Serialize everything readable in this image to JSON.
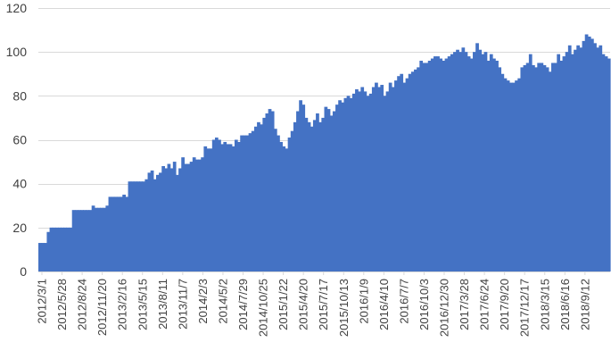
{
  "chart_data": {
    "type": "bar",
    "title": "",
    "xlabel": "",
    "ylabel": "",
    "ylim": [
      0,
      120
    ],
    "yticks": [
      0,
      20,
      40,
      60,
      80,
      100,
      120
    ],
    "grid": "horizontal",
    "legend": "none",
    "bar_color": "#4472C4",
    "x_tick_labels": [
      "2012/3/1",
      "2012/5/28",
      "2012/8/24",
      "2012/11/20",
      "2013/2/16",
      "2013/5/15",
      "2013/8/11",
      "2013/11/7",
      "2014/2/3",
      "2014/5/2",
      "2014/7/29",
      "2014/10/25",
      "2015/1/22",
      "2015/4/20",
      "2015/7/17",
      "2015/10/13",
      "2016/1/9",
      "2016/4/10",
      "2016/7/7",
      "2016/10/3",
      "2016/12/30",
      "2017/3/28",
      "2017/6/24",
      "2017/9/20",
      "2017/12/17",
      "2018/3/15",
      "2018/6/16",
      "2018/9/12"
    ],
    "series": [
      {
        "values": [
          13,
          13,
          13,
          18,
          20,
          20,
          20,
          20,
          20,
          20,
          20,
          20,
          28,
          28,
          28,
          28,
          28,
          28,
          28,
          30,
          29,
          29,
          29,
          29,
          30,
          34,
          34,
          34,
          34,
          34,
          35,
          34,
          41,
          41,
          41,
          41,
          41,
          41,
          42,
          45,
          46,
          42,
          44,
          45,
          48,
          47,
          49,
          47,
          50,
          44,
          47,
          52,
          49,
          49,
          50,
          52,
          51,
          51,
          52,
          57,
          56,
          56,
          60,
          61,
          60,
          58,
          59,
          58,
          58,
          57,
          60,
          59,
          62,
          62,
          62,
          63,
          64,
          66,
          68,
          67,
          70,
          72,
          74,
          73,
          65,
          62,
          59,
          57,
          56,
          61,
          64,
          68,
          73,
          78,
          76,
          70,
          68,
          66,
          69,
          72,
          68,
          70,
          75,
          74,
          71,
          73,
          76,
          78,
          77,
          79,
          80,
          79,
          81,
          83,
          82,
          84,
          82,
          80,
          81,
          84,
          86,
          84,
          85,
          80,
          82,
          86,
          84,
          87,
          89,
          90,
          86,
          88,
          90,
          91,
          92,
          93,
          96,
          95,
          95,
          96,
          97,
          98,
          98,
          97,
          96,
          97,
          98,
          99,
          100,
          101,
          100,
          102,
          100,
          98,
          97,
          100,
          104,
          101,
          99,
          100,
          96,
          99,
          97,
          96,
          93,
          90,
          88,
          87,
          86,
          86,
          87,
          88,
          93,
          94,
          95,
          99,
          94,
          93,
          95,
          95,
          94,
          93,
          91,
          95,
          95,
          99,
          96,
          98,
          100,
          103,
          99,
          101,
          103,
          102,
          105,
          108,
          107,
          106,
          104,
          102,
          103,
          99,
          98,
          97
        ]
      }
    ]
  }
}
